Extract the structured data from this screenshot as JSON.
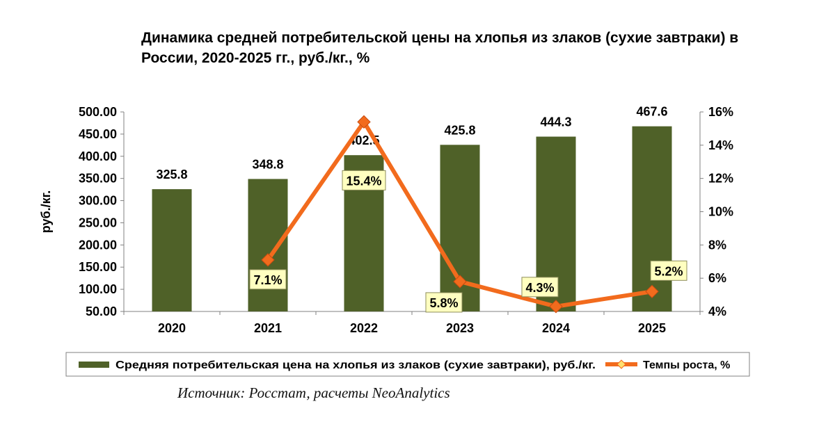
{
  "title": "Динамика средней потребительской цены на хлопья из злаков (сухие завтраки) в России, 2020-2025 гг., руб./кг., %",
  "source": "Источник: Росстат, расчеты NeoAnalytics",
  "colors": {
    "bar": "#4f6128",
    "line": "#f26b1d",
    "label_bg": "#ffffc0"
  },
  "chart_data": {
    "type": "bar",
    "categories": [
      "2020",
      "2021",
      "2022",
      "2023",
      "2024",
      "2025"
    ],
    "series": [
      {
        "name": "Средняя потребительская цена на хлопья из злаков (сухие завтраки), руб./кг.",
        "type": "bar",
        "axis": "left",
        "values": [
          325.8,
          348.8,
          402.5,
          425.8,
          444.3,
          467.6
        ],
        "labels": [
          "325.8",
          "348.8",
          "402.5",
          "425.8",
          "444.3",
          "467.6"
        ]
      },
      {
        "name": "Темпы роста, %",
        "type": "line",
        "axis": "right",
        "values": [
          null,
          7.1,
          15.4,
          5.8,
          4.3,
          5.2
        ],
        "labels": [
          "",
          "7.1%",
          "15.4%",
          "5.8%",
          "4.3%",
          "5.2%"
        ]
      }
    ],
    "ylabel": "руб./кг.",
    "ylim": [
      50,
      500
    ],
    "yticks": [
      "50.00",
      "100.00",
      "150.00",
      "200.00",
      "250.00",
      "300.00",
      "350.00",
      "400.00",
      "450.00",
      "500.00"
    ],
    "y2lim": [
      4,
      16
    ],
    "y2ticks": [
      "4%",
      "6%",
      "8%",
      "10%",
      "12%",
      "14%",
      "16%"
    ],
    "legend_position": "bottom"
  }
}
